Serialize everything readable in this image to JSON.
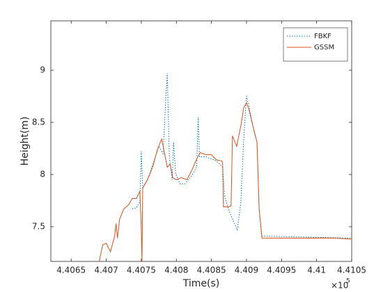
{
  "chart_data": {
    "type": "line",
    "x_label": "Time(s)",
    "y_label": "Height(m)",
    "x_multiplier_base": "×10",
    "x_multiplier_exponent": "5",
    "xlim": [
      440621,
      441050
    ],
    "ylim": [
      7.167,
      9.473
    ],
    "xticks": [
      {
        "value": 440650,
        "label": "4.4065"
      },
      {
        "value": 440700,
        "label": "4.407"
      },
      {
        "value": 440750,
        "label": "4.4075"
      },
      {
        "value": 440800,
        "label": "4.408"
      },
      {
        "value": 440850,
        "label": "4.4085"
      },
      {
        "value": 440900,
        "label": "4.409"
      },
      {
        "value": 440950,
        "label": "4.4095"
      },
      {
        "value": 441000,
        "label": "4.41"
      },
      {
        "value": 441050,
        "label": "4.4105"
      }
    ],
    "yticks": [
      7.5,
      8,
      8.5,
      9
    ],
    "grid": false,
    "legend_location": "northeast",
    "series": [
      {
        "name": "FBKF",
        "color": "#0072BD",
        "dash": "dotted",
        "x": [
          440737,
          440743,
          440748,
          440750,
          440752,
          440759,
          440767,
          440775,
          440781,
          440785,
          440787,
          440790,
          440794,
          440796,
          440799,
          440805,
          440812,
          440822,
          440829,
          440831,
          440833,
          440842,
          440857,
          440866,
          440869,
          440876,
          440882,
          440887,
          440892,
          440896,
          440900,
          440904,
          440910,
          440915,
          440918,
          440922,
          441050
        ],
        "values": [
          7.67,
          7.68,
          7.74,
          8.22,
          7.87,
          7.95,
          8.11,
          8.27,
          8.2,
          8.74,
          8.97,
          8.17,
          7.95,
          8.31,
          8.01,
          7.91,
          7.91,
          7.99,
          8.07,
          8.55,
          8.17,
          8.17,
          8.13,
          8.07,
          7.78,
          7.64,
          7.54,
          7.47,
          7.74,
          8.34,
          8.75,
          8.64,
          8.44,
          8.31,
          7.67,
          7.41,
          7.39
        ]
      },
      {
        "name": "GSSM",
        "color": "#D95319",
        "dash": "solid",
        "x": [
          440690,
          440695,
          440700,
          440706,
          440712,
          440714,
          440716,
          440719,
          440725,
          440732,
          440737,
          440743,
          440748,
          440750,
          440751,
          440752,
          440757,
          440762,
          440767,
          440773,
          440779,
          440782,
          440787,
          440791,
          440795,
          440800,
          440807,
          440815,
          440822,
          440829,
          440834,
          440842,
          440850,
          440857,
          440865,
          440866,
          440867,
          440874,
          440878,
          440880,
          440886,
          440892,
          440896,
          440900,
          440904,
          440910,
          440915,
          440918,
          440922,
          440931,
          440946,
          440965,
          440985,
          441005,
          441025,
          441050
        ],
        "values": [
          7.167,
          7.327,
          7.34,
          7.26,
          7.41,
          7.53,
          7.39,
          7.57,
          7.67,
          7.71,
          7.77,
          7.77,
          7.84,
          7.47,
          7.167,
          7.87,
          7.93,
          8.0,
          8.09,
          8.24,
          8.34,
          8.24,
          8.07,
          8.1,
          7.97,
          7.95,
          7.97,
          7.95,
          8.04,
          8.15,
          8.21,
          8.19,
          8.19,
          8.14,
          8.13,
          8.11,
          7.69,
          7.69,
          7.7,
          8.37,
          8.27,
          8.47,
          8.64,
          8.69,
          8.61,
          8.44,
          8.31,
          7.67,
          7.39,
          7.39,
          7.39,
          7.39,
          7.39,
          7.39,
          7.39,
          7.38
        ]
      }
    ]
  }
}
